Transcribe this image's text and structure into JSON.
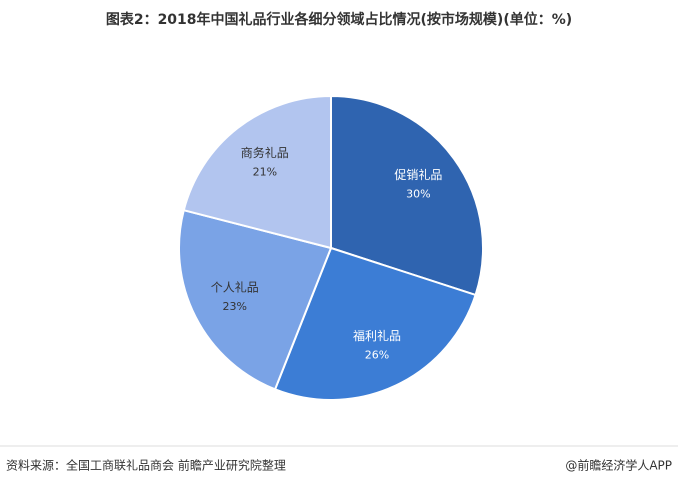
{
  "chart_data": {
    "type": "pie",
    "title": "图表2：2018年中国礼品行业各细分领域占比情况(按市场规模)(单位：%)",
    "categories": [
      "促销礼品",
      "福利礼品",
      "个人礼品",
      "商务礼品"
    ],
    "values": [
      30,
      26,
      23,
      21
    ],
    "value_labels": [
      "30%",
      "26%",
      "23%",
      "21%"
    ],
    "colors": [
      "#2f64b0",
      "#3c7dd5",
      "#7aa3e6",
      "#b2c5ef"
    ],
    "source": "资料来源：全国工商联礼品商会 前瞻产业研究院整理",
    "brand": "@前瞻经济学人APP"
  }
}
